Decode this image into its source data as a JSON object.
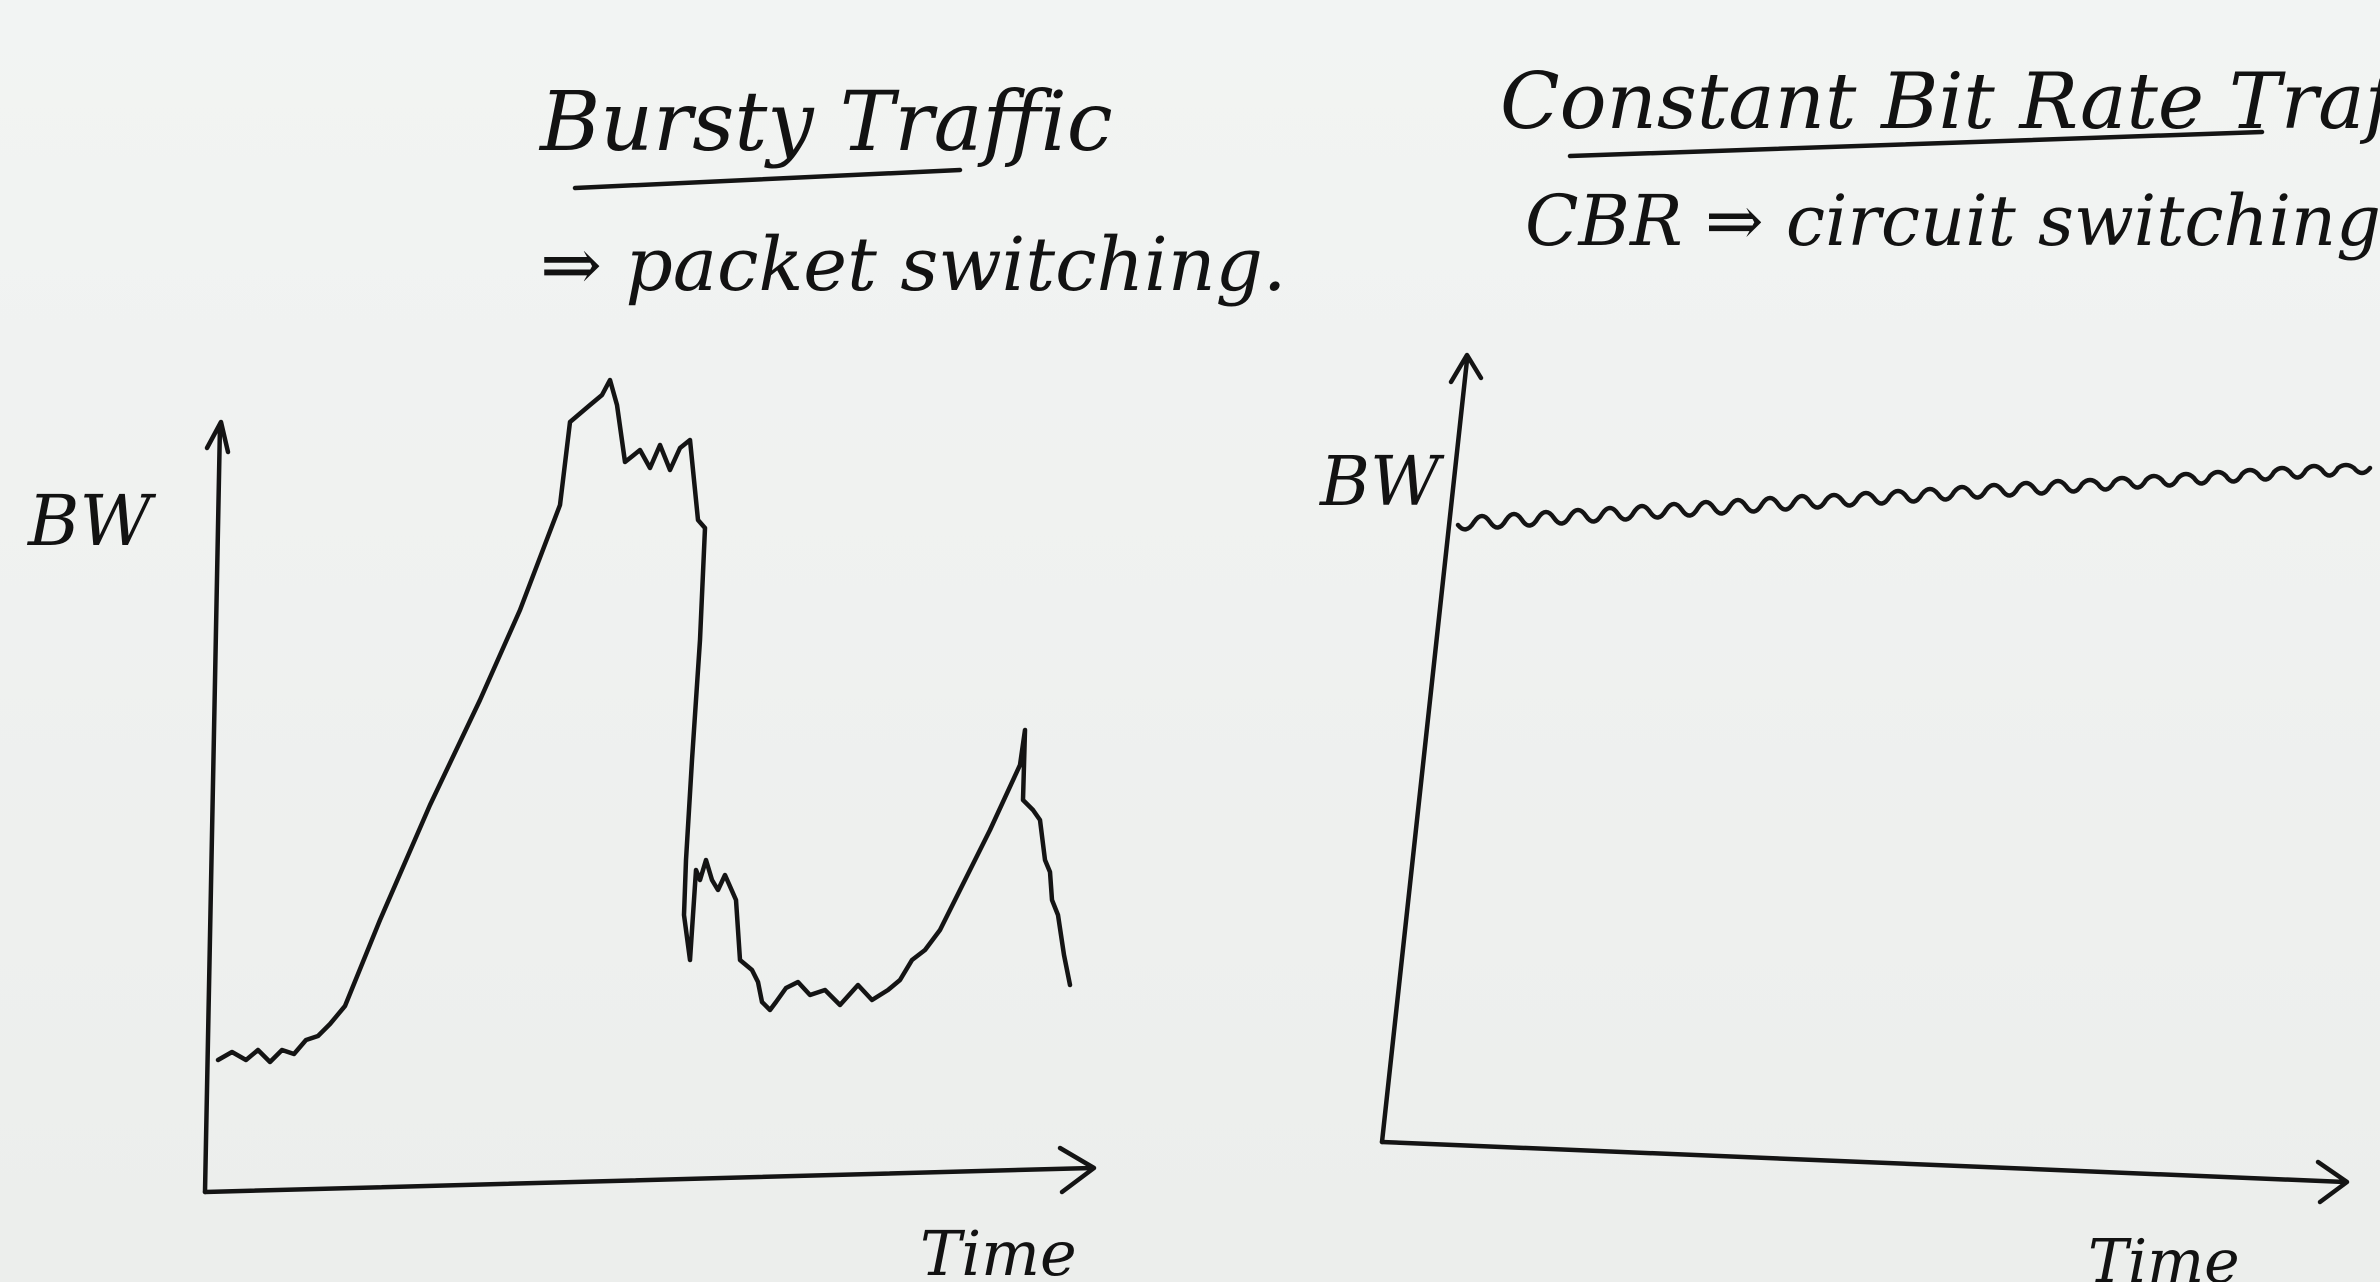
{
  "left_panel": {
    "title": "Bursty Traffic",
    "subtitle": "⇒ packet switching.",
    "y_axis_label": "BW",
    "x_axis_label": "Time"
  },
  "right_panel": {
    "title": "Constant Bit Rate Traffic",
    "subtitle": "CBR ⇒ circuit switching.",
    "y_axis_label": "BW",
    "x_axis_label": "Time"
  },
  "ink_color": "#141414",
  "board_color": "#eef1ef"
}
